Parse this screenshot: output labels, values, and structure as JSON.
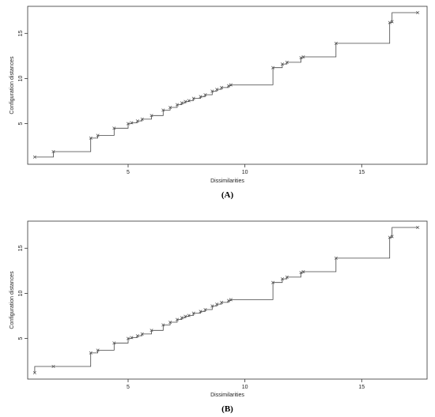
{
  "chart_data": [
    {
      "type": "line",
      "subtype": "step",
      "panel_label": "(A)",
      "xlabel": "Dissimilarities",
      "ylabel": "Configuration distances",
      "xlim": [
        0.7,
        17.8
      ],
      "ylim": [
        0.5,
        18
      ],
      "x_ticks": [
        5,
        10,
        15
      ],
      "y_ticks": [
        5,
        10,
        15
      ],
      "points": {
        "x": [
          1.0,
          1.8,
          3.4,
          3.7,
          4.4,
          5.0,
          5.15,
          5.4,
          5.6,
          6.0,
          6.5,
          6.8,
          7.1,
          7.3,
          7.45,
          7.6,
          7.8,
          8.1,
          8.3,
          8.6,
          8.8,
          9.0,
          9.3,
          9.4,
          11.2,
          11.6,
          11.8,
          12.4,
          12.5,
          13.9,
          16.2,
          16.3,
          17.4
        ],
        "y": [
          1.3,
          1.9,
          3.4,
          3.7,
          4.5,
          5.0,
          5.1,
          5.3,
          5.5,
          5.9,
          6.5,
          6.8,
          7.1,
          7.3,
          7.45,
          7.55,
          7.8,
          8.0,
          8.2,
          8.6,
          8.8,
          9.0,
          9.2,
          9.3,
          11.2,
          11.6,
          11.8,
          12.3,
          12.4,
          13.9,
          16.2,
          16.3,
          17.3
        ]
      },
      "step_y": [
        1.3,
        1.9,
        3.4,
        3.7,
        4.5,
        5.0,
        5.1,
        5.3,
        5.5,
        5.9,
        6.5,
        6.8,
        7.1,
        7.3,
        7.45,
        7.55,
        7.8,
        8.0,
        8.2,
        8.6,
        8.8,
        9.0,
        9.2,
        9.3,
        11.2,
        11.6,
        11.8,
        12.3,
        12.4,
        13.9,
        16.2,
        17.3,
        17.3
      ]
    },
    {
      "type": "line",
      "subtype": "step",
      "panel_label": "(B)",
      "xlabel": "Dissimilarities",
      "ylabel": "Configuration distances",
      "xlim": [
        0.7,
        17.8
      ],
      "ylim": [
        0.5,
        18
      ],
      "x_ticks": [
        5,
        10,
        15
      ],
      "y_ticks": [
        5,
        10,
        15
      ],
      "points": {
        "x": [
          1.0,
          1.8,
          3.4,
          3.7,
          4.4,
          5.0,
          5.15,
          5.4,
          5.6,
          6.0,
          6.5,
          6.8,
          7.1,
          7.3,
          7.45,
          7.6,
          7.8,
          8.1,
          8.3,
          8.6,
          8.8,
          9.0,
          9.3,
          9.4,
          11.2,
          11.6,
          11.8,
          12.4,
          12.5,
          13.9,
          16.2,
          16.3,
          17.4
        ],
        "y": [
          1.2,
          1.9,
          3.4,
          3.7,
          4.5,
          5.0,
          5.1,
          5.3,
          5.5,
          5.9,
          6.5,
          6.8,
          7.1,
          7.3,
          7.45,
          7.55,
          7.8,
          8.0,
          8.2,
          8.6,
          8.8,
          9.0,
          9.2,
          9.3,
          11.2,
          11.6,
          11.8,
          12.3,
          12.4,
          13.9,
          16.2,
          16.3,
          17.3
        ]
      },
      "step_y": [
        1.9,
        1.9,
        3.4,
        3.7,
        4.5,
        5.0,
        5.1,
        5.3,
        5.5,
        5.9,
        6.5,
        6.8,
        7.1,
        7.3,
        7.45,
        7.55,
        7.8,
        8.0,
        8.2,
        8.6,
        8.8,
        9.0,
        9.2,
        9.3,
        11.2,
        11.6,
        11.8,
        12.3,
        12.4,
        13.9,
        16.2,
        17.3,
        17.3
      ]
    }
  ]
}
